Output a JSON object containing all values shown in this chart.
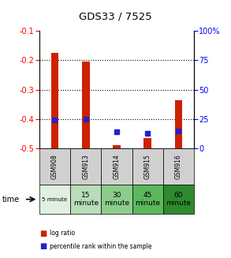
{
  "title": "GDS33 / 7525",
  "samples": [
    "GSM908",
    "GSM913",
    "GSM914",
    "GSM915",
    "GSM916"
  ],
  "time_labels_raw": [
    "5 minute",
    "15\nminute",
    "30\nminute",
    "45\nminute",
    "60\nminute"
  ],
  "time_colors": [
    "#e0f0e0",
    "#b8ddb8",
    "#8ccd8c",
    "#5cb85c",
    "#2e8b2e"
  ],
  "log_ratio": [
    -0.175,
    -0.205,
    -0.49,
    -0.465,
    -0.335
  ],
  "pct_rank_right": [
    24,
    25,
    14,
    13,
    15
  ],
  "ylim_left": [
    -0.5,
    -0.1
  ],
  "ylim_right": [
    0,
    100
  ],
  "yticks_left": [
    -0.5,
    -0.4,
    -0.3,
    -0.2,
    -0.1
  ],
  "yticks_right": [
    0,
    25,
    50,
    75,
    100
  ],
  "bar_color": "#cc2200",
  "dot_color": "#2222cc",
  "bg_color": "#ffffff",
  "sample_bg": "#d0d0d0",
  "legend_red": "log ratio",
  "legend_blue": "percentile rank within the sample"
}
